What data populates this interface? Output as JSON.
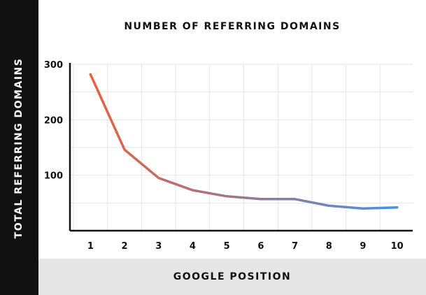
{
  "chart_data": {
    "type": "line",
    "title": "NUMBER OF REFERRING DOMAINS",
    "xlabel": "GOOGLE POSITION",
    "ylabel": "TOTAL REFERRING DOMAINS",
    "x": [
      1,
      2,
      3,
      4,
      5,
      6,
      7,
      8,
      9,
      10
    ],
    "y": [
      282,
      146,
      95,
      73,
      62,
      57,
      57,
      45,
      40,
      42
    ],
    "yticks": [
      100,
      200,
      300
    ],
    "ylim": [
      0,
      300
    ],
    "grid": true,
    "colors": {
      "start": "#e8613f",
      "end": "#4a90e2",
      "grid": "#e6e6e6",
      "axis": "#111111"
    }
  }
}
